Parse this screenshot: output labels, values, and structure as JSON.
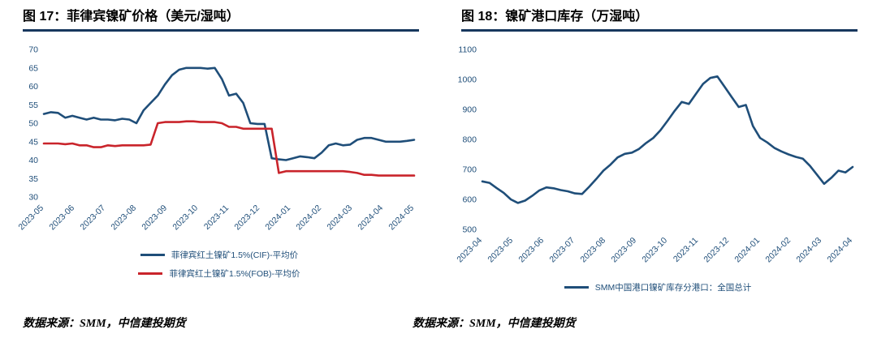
{
  "sources": {
    "left": "数据来源：SMM，中信建投期货",
    "right": "数据来源：SMM，中信建投期货"
  },
  "chart_data": [
    {
      "type": "line",
      "title": "图 17：菲律宾镍矿价格（美元/湿吨）",
      "xlabel": "",
      "ylabel": "",
      "ylim": [
        30,
        70
      ],
      "y_ticks": [
        70,
        65,
        60,
        55,
        50,
        45,
        40,
        35,
        30
      ],
      "grid": false,
      "legend_position": "bottom",
      "x_ticks": [
        "2023-05",
        "2023-06",
        "2023-07",
        "2023-08",
        "2023-09",
        "2023-10",
        "2023-11",
        "2023-12",
        "2024-01",
        "2024-02",
        "2024-03",
        "2024-04",
        "2024-05"
      ],
      "series": [
        {
          "name": "菲律宾红土镍矿1.5%(CIF)-平均价",
          "color": "#1f4e79",
          "values": [
            52.5,
            53,
            52.8,
            51.5,
            52,
            51.5,
            51,
            51.5,
            51,
            51,
            50.8,
            51.2,
            51,
            50,
            53.5,
            55.5,
            57.5,
            60.5,
            63,
            64.5,
            65,
            65,
            65,
            64.8,
            65,
            62,
            57.5,
            58,
            55.5,
            50,
            49.8,
            49.8,
            40.5,
            40.2,
            40,
            40.5,
            41,
            40.8,
            40.5,
            42,
            44,
            44.5,
            44,
            44.2,
            45.5,
            46,
            46,
            45.5,
            45,
            45,
            45,
            45.2,
            45.5
          ]
        },
        {
          "name": "菲律宾红土镍矿1.5%(FOB)-平均价",
          "color": "#c9242b",
          "values": [
            44.5,
            44.5,
            44.5,
            44.3,
            44.5,
            44,
            44,
            43.5,
            43.5,
            44,
            43.8,
            44,
            44,
            44,
            44,
            44.2,
            50,
            50.3,
            50.3,
            50.3,
            50.5,
            50.5,
            50.3,
            50.3,
            50.3,
            50,
            49,
            49,
            48.5,
            48.5,
            48.5,
            48.5,
            48.5,
            36.5,
            37,
            37,
            37,
            37,
            37,
            37,
            37,
            37,
            37,
            36.8,
            36.5,
            36,
            36,
            35.8,
            35.8,
            35.8,
            35.8,
            35.8,
            35.8
          ]
        }
      ]
    },
    {
      "type": "line",
      "title": "图 18：镍矿港口库存（万湿吨）",
      "xlabel": "",
      "ylabel": "",
      "ylim": [
        500,
        1100
      ],
      "y_ticks": [
        1100,
        1000,
        900,
        800,
        700,
        600,
        500
      ],
      "grid": false,
      "legend_position": "bottom",
      "x_ticks": [
        "2023-04",
        "2023-05",
        "2023-06",
        "2023-07",
        "2023-08",
        "2023-09",
        "2023-10",
        "2023-11",
        "2023-12",
        "2024-01",
        "2024-02",
        "2024-03",
        "2024-04"
      ],
      "series": [
        {
          "name": "SMM中国港口镍矿库存分港口：全国总计",
          "color": "#1f4e79",
          "values": [
            660,
            655,
            638,
            622,
            600,
            588,
            596,
            612,
            630,
            640,
            637,
            631,
            627,
            620,
            618,
            642,
            668,
            696,
            716,
            740,
            752,
            756,
            768,
            788,
            805,
            830,
            862,
            895,
            925,
            918,
            952,
            985,
            1005,
            1010,
            976,
            942,
            908,
            915,
            845,
            805,
            790,
            772,
            760,
            750,
            742,
            736,
            712,
            682,
            652,
            672,
            696,
            690,
            708
          ]
        }
      ]
    }
  ]
}
